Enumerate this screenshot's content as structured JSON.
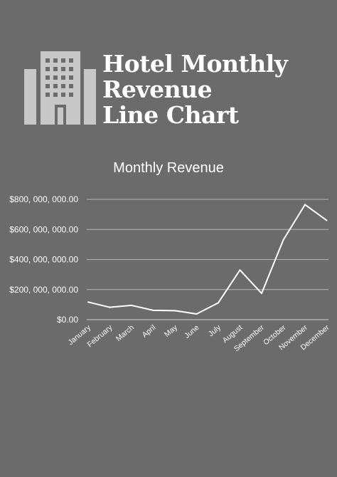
{
  "header": {
    "title_lines": [
      "Hotel Monthly",
      "Revenue",
      "Line Chart"
    ],
    "logo_icon": "hotel-building-icon"
  },
  "colors": {
    "background": "#6b6b6b",
    "text": "#ffffff",
    "logo": "#c8c8c8",
    "gridline": "#b5b5b5",
    "line": "#ffffff"
  },
  "chart_data": {
    "type": "line",
    "title": "Monthly Revenue",
    "xlabel": "",
    "ylabel": "",
    "categories": [
      "January",
      "February",
      "March",
      "April",
      "May",
      "June",
      "July",
      "August",
      "September",
      "October",
      "November",
      "December"
    ],
    "series": [
      {
        "values": [
          117000000,
          82000000,
          95000000,
          62000000,
          60000000,
          38000000,
          112000000,
          330000000,
          175000000,
          530000000,
          765000000,
          660000000
        ]
      }
    ],
    "ylim": [
      0,
      800000000
    ],
    "yticks": [
      0,
      200000000,
      400000000,
      600000000,
      800000000
    ],
    "ytick_labels": [
      "$0.00",
      "$200, 000, 000.00",
      "$400, 000, 000.00",
      "$600, 000, 000.00",
      "$800, 000, 000.00"
    ],
    "grid": true,
    "legend": "none"
  }
}
